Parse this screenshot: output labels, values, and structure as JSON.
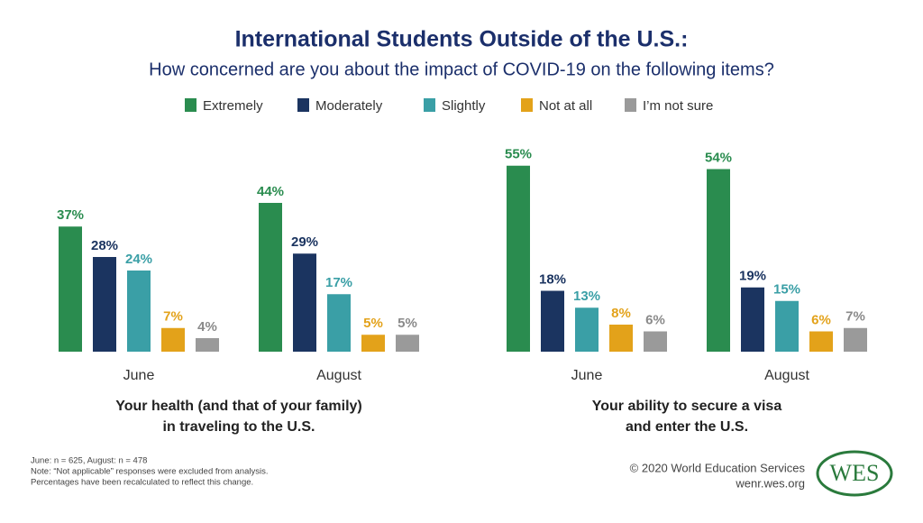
{
  "header": {
    "title": "International Students Outside of the U.S.:",
    "subtitle": "How concerned are you about the impact of COVID-19 on the following items?"
  },
  "chart_data": [
    {
      "type": "bar",
      "categories": [
        "June",
        "August"
      ],
      "caption_lines": [
        "Your health (and that of your family)",
        "in traveling to the U.S."
      ],
      "series": [
        {
          "name": "Extremely",
          "color": "#2a8c4f",
          "values": [
            37,
            44
          ],
          "value_labels": [
            "37%",
            "44%"
          ]
        },
        {
          "name": "Moderately",
          "color": "#1b3460",
          "values": [
            28,
            29
          ],
          "value_labels": [
            "28%",
            "29%"
          ]
        },
        {
          "name": "Slightly",
          "color": "#3a9fa6",
          "values": [
            24,
            17
          ],
          "value_labels": [
            "24%",
            "17%"
          ]
        },
        {
          "name": "Not at all",
          "color": "#e3a21a",
          "values": [
            7,
            5
          ],
          "value_labels": [
            "7%",
            "5%"
          ]
        },
        {
          "name": "I’m not sure",
          "color": "#9a9a9a",
          "values": [
            4,
            5
          ],
          "value_labels": [
            "4%",
            "5%"
          ]
        }
      ]
    },
    {
      "type": "bar",
      "categories": [
        "June",
        "August"
      ],
      "caption_lines": [
        "Your ability to secure a visa",
        "and enter the U.S."
      ],
      "series": [
        {
          "color": "#2a8c4f",
          "values": [
            55,
            54
          ],
          "value_labels": [
            "55%",
            "54%"
          ]
        },
        {
          "color": "#1b3460",
          "values": [
            18,
            19
          ],
          "value_labels": [
            "18%",
            "19%"
          ]
        },
        {
          "color": "#3a9fa6",
          "values": [
            13,
            15
          ],
          "value_labels": [
            "13%",
            "15%"
          ]
        },
        {
          "color": "#e3a21a",
          "values": [
            8,
            6
          ],
          "value_labels": [
            "8%",
            "6%"
          ]
        },
        {
          "color": "#9a9a9a",
          "values": [
            6,
            7
          ],
          "value_labels": [
            "6%",
            "7%"
          ]
        }
      ]
    }
  ],
  "footer": {
    "notes": [
      "June: n = 625, August: n = 478",
      "Note: “Not applicable” responses were excluded from analysis.",
      "Percentages have been recalculated to reflect this change."
    ],
    "credit": [
      "© 2020 World Education Services",
      "wenr.wes.org"
    ],
    "logo": "WES"
  }
}
